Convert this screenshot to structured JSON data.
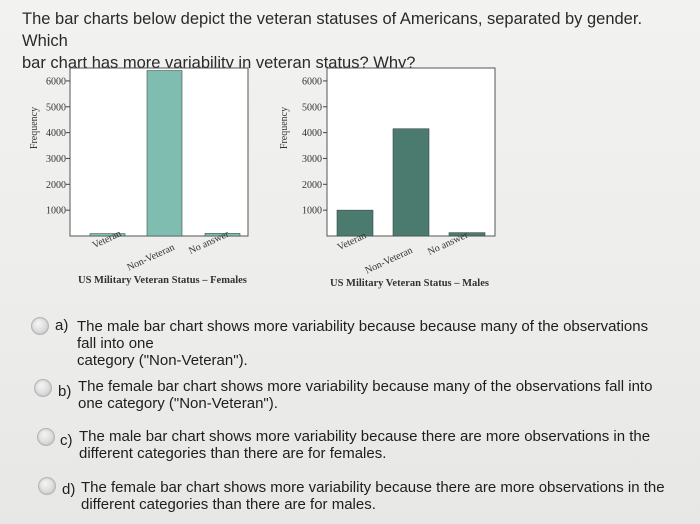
{
  "question": {
    "line1": "The bar charts below depict the veteran statuses of Americans, separated by gender. Which",
    "line2": "bar chart has more variability in veteran status? Why?"
  },
  "chart_data": [
    {
      "type": "bar",
      "categories": [
        "Veteran",
        "Non-Veteran",
        "No answer"
      ],
      "values": [
        90,
        6400,
        100
      ],
      "xlabel": "US Military Veteran Status – Females",
      "ylabel": "Frequency",
      "yticks": [
        1000,
        2000,
        3000,
        4000,
        5000,
        6000
      ],
      "ylim": [
        0,
        6500
      ],
      "bar_color": "#7ebdb0"
    },
    {
      "type": "bar",
      "categories": [
        "Veteran",
        "Non-Veteran",
        "No answer"
      ],
      "values": [
        1000,
        4150,
        130
      ],
      "xlabel": "US Military Veteran Status – Males",
      "ylabel": "Frequency",
      "yticks": [
        1000,
        2000,
        3000,
        4000,
        5000,
        6000
      ],
      "ylim": [
        0,
        6500
      ],
      "bar_color": "#4b7a6e"
    }
  ],
  "options": [
    {
      "letter": "a)",
      "lines": [
        "The male bar chart shows more variability because because many of the observations",
        "fall into one",
        "category (\"Non-Veteran\")."
      ]
    },
    {
      "letter": "b)",
      "lines": [
        "The female bar chart shows more variability because many of the observations fall into",
        "one category (\"Non-Veteran\")."
      ]
    },
    {
      "letter": "c)",
      "lines": [
        "The male bar chart shows more variability because there are more observations in the",
        "different categories than there are for females."
      ]
    },
    {
      "letter": "d)",
      "lines": [
        "The female bar chart shows more variability because there are more observations in the",
        "different categories than there are for males."
      ]
    }
  ]
}
